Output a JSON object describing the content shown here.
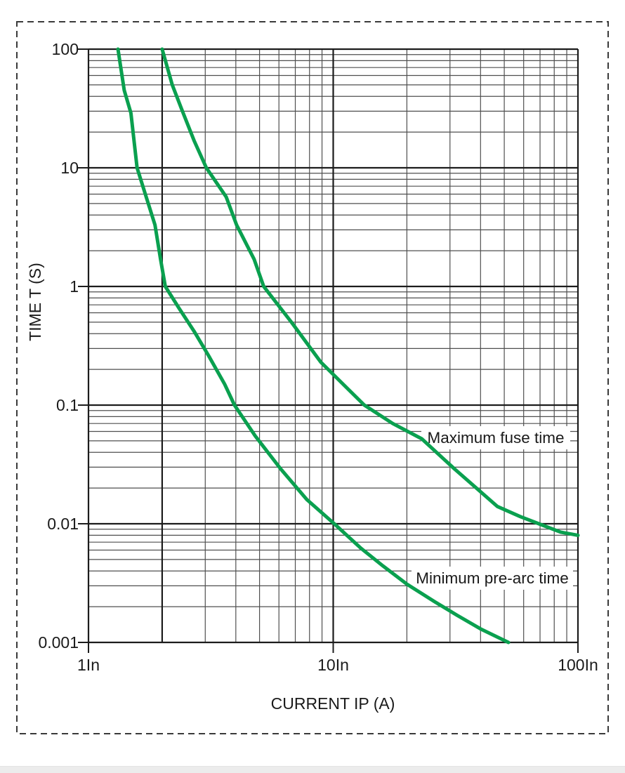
{
  "page": {
    "background": "#ffffff",
    "frame_color": "#3a3a3a",
    "bottom_strip_color": "#ececec"
  },
  "chart_data": {
    "type": "line",
    "title": "",
    "xlabel": "CURRENT IP (A)",
    "ylabel": "TIME T (S)",
    "x_scale": "log",
    "y_scale": "log",
    "xlim": [
      1,
      100
    ],
    "ylim": [
      0.001,
      100
    ],
    "grid": {
      "minor": true,
      "major": true,
      "emphasized_x_values": [
        2
      ]
    },
    "legend_position": "inline-labels",
    "x_ticks": [
      {
        "value": 1,
        "label": "1In"
      },
      {
        "value": 10,
        "label": "10In"
      },
      {
        "value": 100,
        "label": "100In"
      }
    ],
    "y_ticks": [
      {
        "value": 100,
        "label": "100"
      },
      {
        "value": 10,
        "label": "10"
      },
      {
        "value": 1,
        "label": "1"
      },
      {
        "value": 0.1,
        "label": "0.1"
      },
      {
        "value": 0.01,
        "label": "0.01"
      },
      {
        "value": 0.001,
        "label": "0.001"
      }
    ],
    "colors": {
      "curve": "#0aa04f",
      "grid_minor": "#4f4f4f",
      "grid_major": "#1c1c1c",
      "text": "#1a1a1a"
    },
    "series": [
      {
        "name": "Maximum fuse time",
        "points": [
          [
            2.0,
            100
          ],
          [
            2.2,
            50
          ],
          [
            2.42,
            30
          ],
          [
            2.7,
            17
          ],
          [
            3.03,
            10
          ],
          [
            3.65,
            5.7
          ],
          [
            4.03,
            3.3
          ],
          [
            4.75,
            1.7
          ],
          [
            5.2,
            1.0
          ],
          [
            6.8,
            0.49
          ],
          [
            8.9,
            0.23
          ],
          [
            13.4,
            0.1
          ],
          [
            17.5,
            0.07
          ],
          [
            23,
            0.052
          ],
          [
            31.3,
            0.029
          ],
          [
            46.8,
            0.014
          ],
          [
            58,
            0.0115
          ],
          [
            71,
            0.0098
          ],
          [
            85,
            0.0085
          ],
          [
            100,
            0.008
          ]
        ]
      },
      {
        "name": "Minimum pre-arc time",
        "points": [
          [
            1.32,
            100
          ],
          [
            1.4,
            45
          ],
          [
            1.49,
            29
          ],
          [
            1.58,
            10
          ],
          [
            1.72,
            5.7
          ],
          [
            1.87,
            3.3
          ],
          [
            1.97,
            1.7
          ],
          [
            2.06,
            1.0
          ],
          [
            2.35,
            0.65
          ],
          [
            2.7,
            0.42
          ],
          [
            3.1,
            0.26
          ],
          [
            3.6,
            0.15
          ],
          [
            3.95,
            0.1
          ],
          [
            4.8,
            0.055
          ],
          [
            6.1,
            0.029
          ],
          [
            7.8,
            0.016
          ],
          [
            10.1,
            0.01
          ],
          [
            13,
            0.0062
          ],
          [
            16,
            0.0044
          ],
          [
            20,
            0.0031
          ],
          [
            26,
            0.0022
          ],
          [
            32,
            0.0017
          ],
          [
            40,
            0.0013
          ],
          [
            52,
            0.001
          ]
        ]
      }
    ]
  }
}
